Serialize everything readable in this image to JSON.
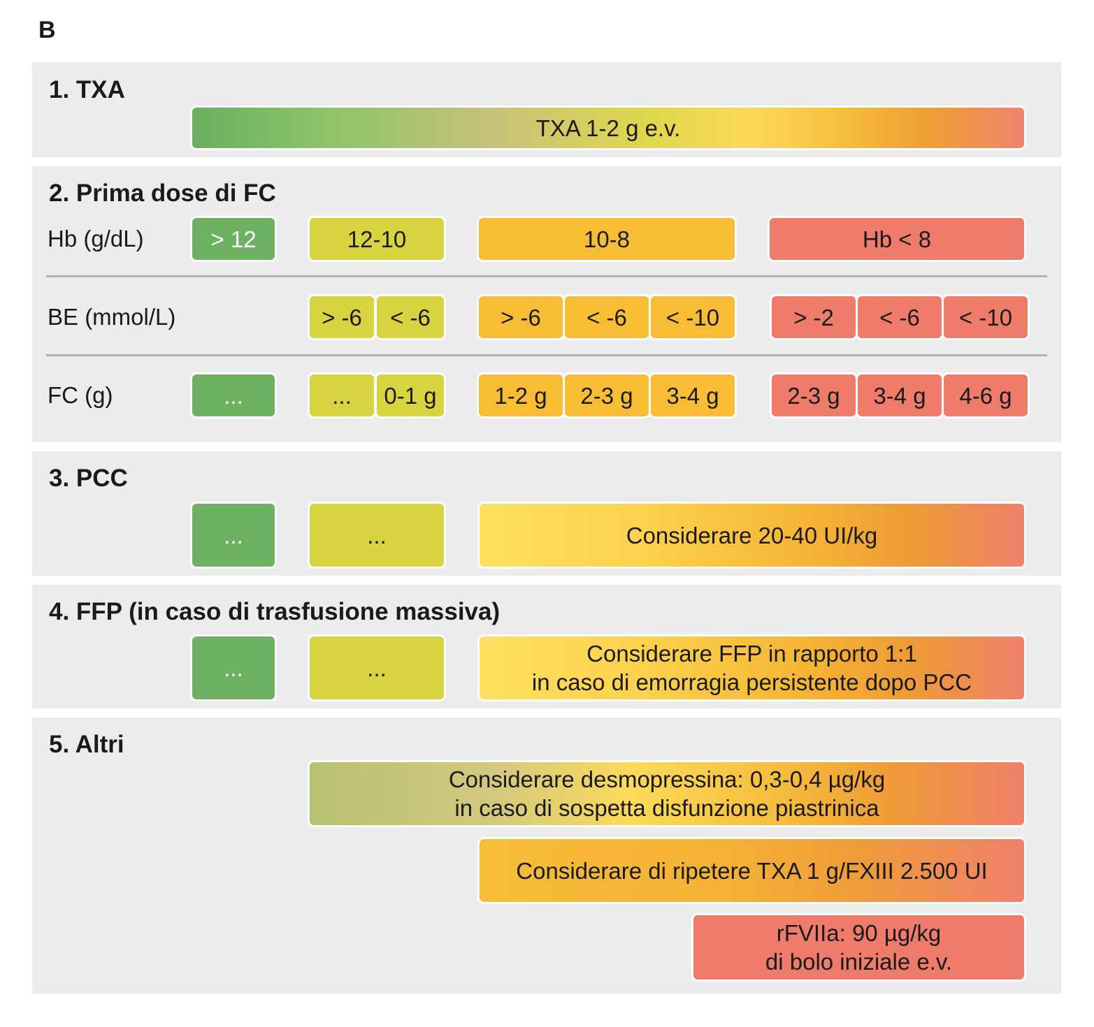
{
  "panel_label": "B",
  "colors": {
    "green": "#6fb163",
    "yellow": "#d7d440",
    "orange": "#f8bd35",
    "red": "#ef7b6b",
    "section_bg": "#ececec"
  },
  "s1": {
    "title": "1. TXA",
    "bar": "TXA 1-2 g e.v."
  },
  "s2": {
    "title": "2. Prima dose di FC",
    "hb": {
      "label": "Hb (g/dL)",
      "values": [
        "> 12",
        "12-10",
        "10-8",
        "Hb < 8"
      ]
    },
    "be": {
      "label": "BE (mmol/L)",
      "values": [
        "> -6",
        "< -6",
        "> -6",
        "< -6",
        "< -10",
        "> -2",
        "< -6",
        "< -10"
      ]
    },
    "fc": {
      "label": "FC (g)",
      "values": [
        "...",
        "...",
        "0-1 g",
        "1-2 g",
        "2-3 g",
        "3-4 g",
        "2-3 g",
        "3-4 g",
        "4-6 g"
      ]
    }
  },
  "s3": {
    "title": "3. PCC",
    "green": "...",
    "yellow": "...",
    "bar": "Considerare 20-40 UI/kg"
  },
  "s4": {
    "title": "4. FFP (in caso di trasfusione massiva)",
    "green": "...",
    "yellow": "...",
    "bar_line1": "Considerare FFP in rapporto 1:1",
    "bar_line2": "in caso di emorragia persistente dopo PCC"
  },
  "s5": {
    "title": "5. Altri",
    "desmo_line1": "Considerare desmopressina: 0,3-0,4 µg/kg",
    "desmo_line2": "in caso di sospetta disfunzione piastrinica",
    "txa_repeat": "Considerare di ripetere TXA 1 g/FXIII 2.500 UI",
    "rfviia_line1": "rFVIIa: 90 µg/kg",
    "rfviia_line2": "di bolo iniziale e.v."
  }
}
